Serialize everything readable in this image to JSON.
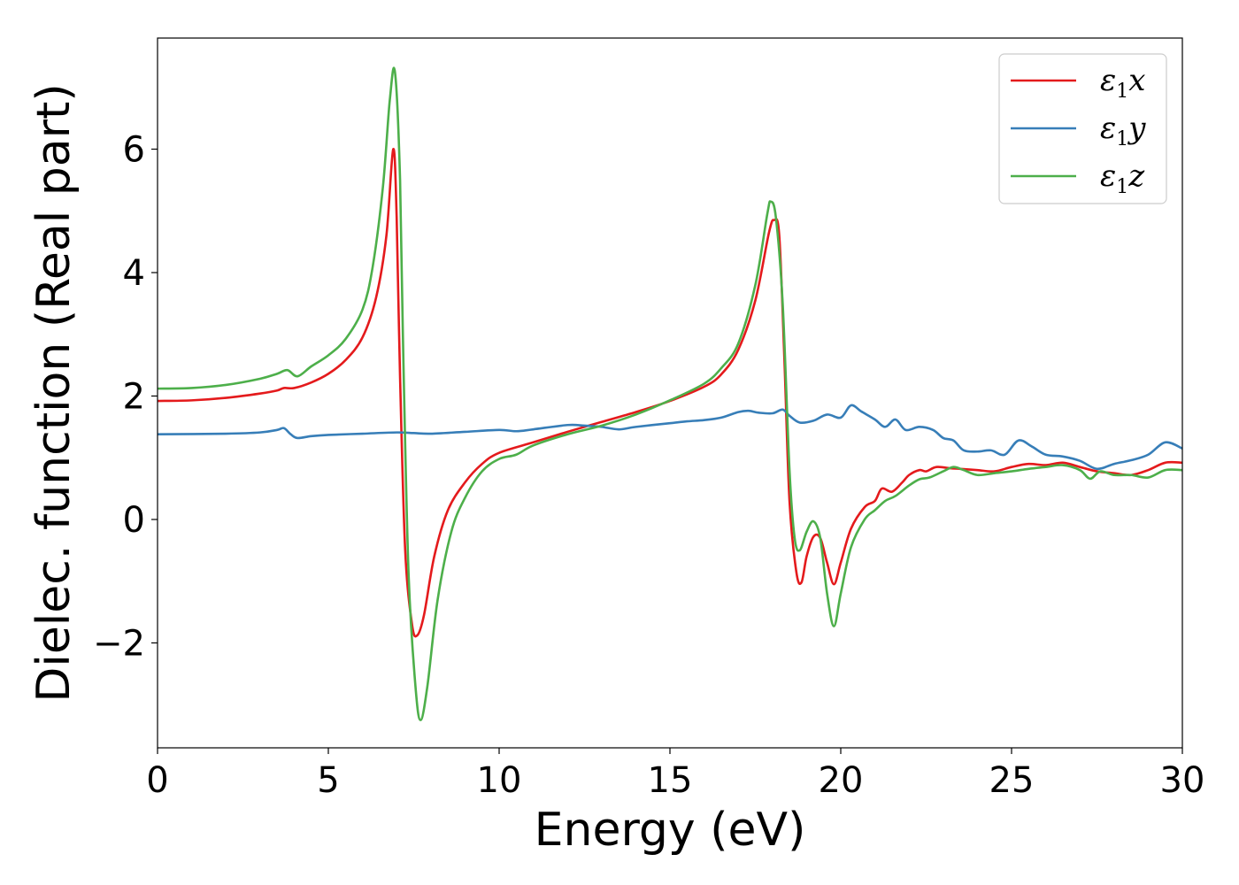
{
  "chart_data": {
    "type": "line",
    "title": "",
    "xlabel": "Energy (eV)",
    "ylabel": "Dielec. function (Real part)",
    "xlim": [
      0,
      30
    ],
    "ylim": [
      -3.7,
      7.8
    ],
    "xticks": [
      0,
      5,
      10,
      15,
      20,
      25,
      30
    ],
    "xtick_labels": [
      "0",
      "5",
      "10",
      "15",
      "20",
      "25",
      "30"
    ],
    "yticks": [
      -2,
      0,
      2,
      4,
      6
    ],
    "ytick_labels": [
      "−2",
      "0",
      "2",
      "4",
      "6"
    ],
    "grid": false,
    "legend_position": "top-right",
    "series": [
      {
        "name": "ε₁x",
        "symbol": "ε",
        "subscript": "1",
        "axis": "x",
        "color": "#e41a1c",
        "points": [
          [
            0,
            1.92
          ],
          [
            1,
            1.93
          ],
          [
            2,
            1.97
          ],
          [
            3,
            2.04
          ],
          [
            3.5,
            2.09
          ],
          [
            3.7,
            2.13
          ],
          [
            4,
            2.13
          ],
          [
            4.5,
            2.22
          ],
          [
            5,
            2.36
          ],
          [
            5.5,
            2.58
          ],
          [
            6,
            2.95
          ],
          [
            6.4,
            3.6
          ],
          [
            6.7,
            4.6
          ],
          [
            6.9,
            6.0
          ],
          [
            7.0,
            4.9
          ],
          [
            7.1,
            2.3
          ],
          [
            7.25,
            -0.5
          ],
          [
            7.45,
            -1.7
          ],
          [
            7.6,
            -1.88
          ],
          [
            7.8,
            -1.55
          ],
          [
            8.1,
            -0.6
          ],
          [
            8.5,
            0.15
          ],
          [
            9,
            0.6
          ],
          [
            9.5,
            0.9
          ],
          [
            10,
            1.08
          ],
          [
            11,
            1.25
          ],
          [
            12,
            1.42
          ],
          [
            13,
            1.58
          ],
          [
            14,
            1.74
          ],
          [
            15,
            1.92
          ],
          [
            16,
            2.15
          ],
          [
            16.5,
            2.35
          ],
          [
            17,
            2.75
          ],
          [
            17.5,
            3.55
          ],
          [
            17.9,
            4.65
          ],
          [
            18.05,
            4.85
          ],
          [
            18.2,
            4.6
          ],
          [
            18.35,
            2.6
          ],
          [
            18.5,
            0.3
          ],
          [
            18.7,
            -0.85
          ],
          [
            18.85,
            -1.02
          ],
          [
            19.0,
            -0.6
          ],
          [
            19.2,
            -0.28
          ],
          [
            19.4,
            -0.3
          ],
          [
            19.6,
            -0.7
          ],
          [
            19.8,
            -1.05
          ],
          [
            20.0,
            -0.7
          ],
          [
            20.3,
            -0.15
          ],
          [
            20.7,
            0.2
          ],
          [
            21.0,
            0.3
          ],
          [
            21.2,
            0.5
          ],
          [
            21.5,
            0.45
          ],
          [
            21.8,
            0.6
          ],
          [
            22.0,
            0.72
          ],
          [
            22.3,
            0.8
          ],
          [
            22.5,
            0.78
          ],
          [
            22.8,
            0.85
          ],
          [
            23.2,
            0.83
          ],
          [
            23.5,
            0.82
          ],
          [
            24.0,
            0.8
          ],
          [
            24.5,
            0.78
          ],
          [
            25.0,
            0.85
          ],
          [
            25.5,
            0.9
          ],
          [
            26.0,
            0.88
          ],
          [
            26.5,
            0.92
          ],
          [
            27.0,
            0.85
          ],
          [
            27.5,
            0.78
          ],
          [
            28.0,
            0.75
          ],
          [
            28.5,
            0.72
          ],
          [
            29.0,
            0.8
          ],
          [
            29.5,
            0.92
          ],
          [
            30,
            0.92
          ]
        ]
      },
      {
        "name": "ε₁y",
        "symbol": "ε",
        "subscript": "1",
        "axis": "y",
        "color": "#377eb8",
        "points": [
          [
            0,
            1.38
          ],
          [
            2,
            1.39
          ],
          [
            3,
            1.41
          ],
          [
            3.5,
            1.45
          ],
          [
            3.7,
            1.48
          ],
          [
            3.9,
            1.38
          ],
          [
            4.1,
            1.32
          ],
          [
            4.5,
            1.35
          ],
          [
            5,
            1.37
          ],
          [
            6,
            1.39
          ],
          [
            7,
            1.41
          ],
          [
            7.5,
            1.4
          ],
          [
            8,
            1.39
          ],
          [
            9,
            1.42
          ],
          [
            10,
            1.45
          ],
          [
            10.5,
            1.43
          ],
          [
            11,
            1.46
          ],
          [
            12,
            1.53
          ],
          [
            12.5,
            1.52
          ],
          [
            13,
            1.5
          ],
          [
            13.5,
            1.46
          ],
          [
            14,
            1.5
          ],
          [
            15,
            1.56
          ],
          [
            15.5,
            1.59
          ],
          [
            16,
            1.61
          ],
          [
            16.5,
            1.65
          ],
          [
            17,
            1.74
          ],
          [
            17.3,
            1.76
          ],
          [
            17.6,
            1.73
          ],
          [
            18,
            1.72
          ],
          [
            18.3,
            1.78
          ],
          [
            18.5,
            1.68
          ],
          [
            18.8,
            1.57
          ],
          [
            19.2,
            1.6
          ],
          [
            19.6,
            1.7
          ],
          [
            20.0,
            1.65
          ],
          [
            20.3,
            1.85
          ],
          [
            20.6,
            1.75
          ],
          [
            21.0,
            1.62
          ],
          [
            21.3,
            1.5
          ],
          [
            21.6,
            1.62
          ],
          [
            21.9,
            1.45
          ],
          [
            22.3,
            1.5
          ],
          [
            22.7,
            1.45
          ],
          [
            23.0,
            1.32
          ],
          [
            23.3,
            1.28
          ],
          [
            23.6,
            1.12
          ],
          [
            24.0,
            1.1
          ],
          [
            24.4,
            1.12
          ],
          [
            24.8,
            1.05
          ],
          [
            25.2,
            1.28
          ],
          [
            25.6,
            1.18
          ],
          [
            26.0,
            1.05
          ],
          [
            26.5,
            1.02
          ],
          [
            27.0,
            0.95
          ],
          [
            27.5,
            0.82
          ],
          [
            28.0,
            0.9
          ],
          [
            28.5,
            0.96
          ],
          [
            29.0,
            1.05
          ],
          [
            29.5,
            1.25
          ],
          [
            30,
            1.15
          ]
        ]
      },
      {
        "name": "ε₁z",
        "symbol": "ε",
        "subscript": "1",
        "axis": "z",
        "color": "#4daf4a",
        "points": [
          [
            0,
            2.12
          ],
          [
            1,
            2.13
          ],
          [
            2,
            2.18
          ],
          [
            3,
            2.28
          ],
          [
            3.5,
            2.36
          ],
          [
            3.8,
            2.42
          ],
          [
            4.1,
            2.32
          ],
          [
            4.5,
            2.48
          ],
          [
            5,
            2.66
          ],
          [
            5.5,
            2.92
          ],
          [
            6,
            3.4
          ],
          [
            6.3,
            4.1
          ],
          [
            6.6,
            5.4
          ],
          [
            6.8,
            6.8
          ],
          [
            6.95,
            7.25
          ],
          [
            7.1,
            5.5
          ],
          [
            7.2,
            2.5
          ],
          [
            7.35,
            -0.9
          ],
          [
            7.55,
            -2.7
          ],
          [
            7.7,
            -3.25
          ],
          [
            7.9,
            -2.7
          ],
          [
            8.2,
            -1.3
          ],
          [
            8.6,
            -0.2
          ],
          [
            9,
            0.35
          ],
          [
            9.5,
            0.78
          ],
          [
            10,
            0.98
          ],
          [
            10.5,
            1.05
          ],
          [
            11,
            1.2
          ],
          [
            12,
            1.38
          ],
          [
            13,
            1.52
          ],
          [
            14,
            1.7
          ],
          [
            15,
            1.93
          ],
          [
            16,
            2.2
          ],
          [
            16.5,
            2.45
          ],
          [
            17,
            2.85
          ],
          [
            17.5,
            3.8
          ],
          [
            17.85,
            4.95
          ],
          [
            17.95,
            5.15
          ],
          [
            18.1,
            4.9
          ],
          [
            18.3,
            3.5
          ],
          [
            18.5,
            0.8
          ],
          [
            18.65,
            -0.3
          ],
          [
            18.8,
            -0.5
          ],
          [
            19.0,
            -0.2
          ],
          [
            19.2,
            -0.03
          ],
          [
            19.4,
            -0.3
          ],
          [
            19.6,
            -1.2
          ],
          [
            19.8,
            -1.73
          ],
          [
            20.0,
            -1.2
          ],
          [
            20.3,
            -0.45
          ],
          [
            20.7,
            0.0
          ],
          [
            21.0,
            0.15
          ],
          [
            21.3,
            0.3
          ],
          [
            21.6,
            0.38
          ],
          [
            22.0,
            0.55
          ],
          [
            22.3,
            0.65
          ],
          [
            22.6,
            0.68
          ],
          [
            23.0,
            0.78
          ],
          [
            23.3,
            0.85
          ],
          [
            23.6,
            0.8
          ],
          [
            24.0,
            0.72
          ],
          [
            24.5,
            0.75
          ],
          [
            25.0,
            0.78
          ],
          [
            25.5,
            0.82
          ],
          [
            26.0,
            0.85
          ],
          [
            26.5,
            0.88
          ],
          [
            27.0,
            0.8
          ],
          [
            27.3,
            0.66
          ],
          [
            27.6,
            0.78
          ],
          [
            28.0,
            0.72
          ],
          [
            28.5,
            0.72
          ],
          [
            29.0,
            0.68
          ],
          [
            29.5,
            0.8
          ],
          [
            30,
            0.8
          ]
        ]
      }
    ]
  }
}
